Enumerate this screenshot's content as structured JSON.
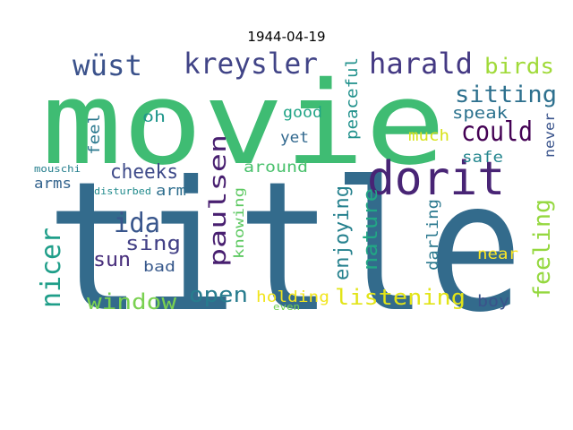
{
  "title": "1944-04-19",
  "words": [
    {
      "text": "title",
      "color": "#336b8c"
    },
    {
      "text": "movie",
      "color": "#3fbc73"
    },
    {
      "text": "dorit",
      "color": "#482475"
    },
    {
      "text": "kreysler",
      "color": "#414487"
    },
    {
      "text": "wüst",
      "color": "#3b528b"
    },
    {
      "text": "harald",
      "color": "#443983"
    },
    {
      "text": "birds",
      "color": "#a0da39"
    },
    {
      "text": "sitting",
      "color": "#2d708e"
    },
    {
      "text": "could",
      "color": "#440154"
    },
    {
      "text": "speak",
      "color": "#2c728e"
    },
    {
      "text": "peaceful",
      "color": "#21918c"
    },
    {
      "text": "good",
      "color": "#20a486"
    },
    {
      "text": "yet",
      "color": "#31688e"
    },
    {
      "text": "much",
      "color": "#d8e219"
    },
    {
      "text": "never",
      "color": "#3a548c"
    },
    {
      "text": "oh",
      "color": "#1f968b"
    },
    {
      "text": "feel",
      "color": "#2a788e"
    },
    {
      "text": "safe",
      "color": "#24868e"
    },
    {
      "text": "cheeks",
      "color": "#3e4a89"
    },
    {
      "text": "paulsen",
      "color": "#481f70"
    },
    {
      "text": "around",
      "color": "#4ac16d"
    },
    {
      "text": "enjoying",
      "color": "#26818e"
    },
    {
      "text": "nature",
      "color": "#22a785"
    },
    {
      "text": "arms",
      "color": "#33638d"
    },
    {
      "text": "arm",
      "color": "#2e6e8e"
    },
    {
      "text": "mouschi",
      "color": "#277f8e"
    },
    {
      "text": "disturbed",
      "color": "#228b8d"
    },
    {
      "text": "ida",
      "color": "#39568c"
    },
    {
      "text": "sing",
      "color": "#424086"
    },
    {
      "text": "sun",
      "color": "#472d7b"
    },
    {
      "text": "knowing",
      "color": "#5ec962"
    },
    {
      "text": "darling",
      "color": "#2a788e"
    },
    {
      "text": "feeling",
      "color": "#95d840"
    },
    {
      "text": "nicer",
      "color": "#1f9e89"
    },
    {
      "text": "near",
      "color": "#fde725"
    },
    {
      "text": "bad",
      "color": "#38598c"
    },
    {
      "text": "open",
      "color": "#287c8e"
    },
    {
      "text": "window",
      "color": "#7ad151"
    },
    {
      "text": "holding",
      "color": "#f1e51d"
    },
    {
      "text": "listening",
      "color": "#e2e418"
    },
    {
      "text": "boy",
      "color": "#3a538b"
    },
    {
      "text": "even",
      "color": "#75d054"
    }
  ]
}
